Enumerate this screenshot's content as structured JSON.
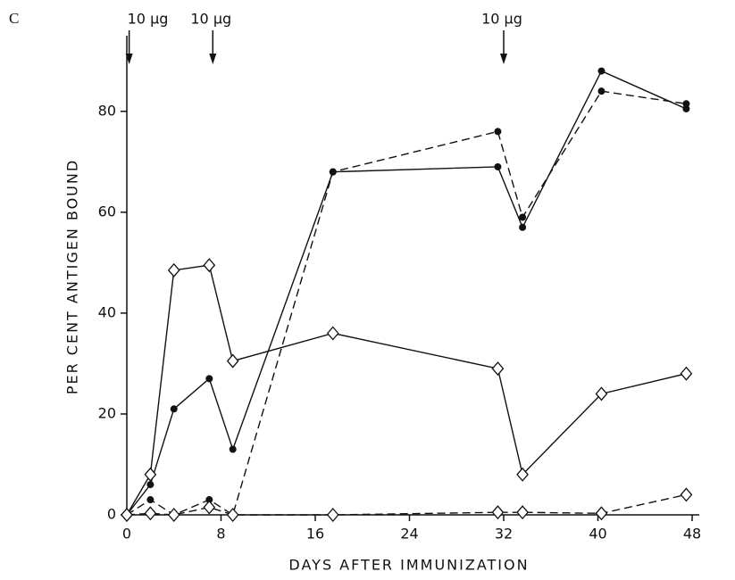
{
  "chart_data": {
    "type": "line",
    "panel_label": "C",
    "x_label": "DAYS AFTER IMMUNIZATION",
    "y_label": "PER CENT ANTIGEN BOUND",
    "xlim": [
      0,
      48
    ],
    "xticks": [
      0,
      8,
      16,
      24,
      32,
      40,
      48
    ],
    "ylim": [
      0,
      95
    ],
    "yticks": [
      0,
      20,
      40,
      60,
      80
    ],
    "annotations": [
      {
        "text": "10 μg",
        "x": 0.2
      },
      {
        "text": "10 μg",
        "x": 7.3
      },
      {
        "text": "10 μg",
        "x": 32
      }
    ],
    "series": [
      {
        "color": "#111111",
        "marker": "circle",
        "dashed": false,
        "x": [
          0,
          2,
          4,
          7,
          9,
          17.5,
          31.5,
          33.6,
          40.3,
          47.5
        ],
        "values": [
          0,
          6,
          21,
          27,
          13,
          68,
          69,
          57,
          88,
          80.5
        ]
      },
      {
        "color": "#111111",
        "marker": "circle",
        "dashed": true,
        "x": [
          0,
          2,
          4,
          7,
          9,
          17.5,
          31.5,
          33.6,
          40.3,
          47.5
        ],
        "values": [
          0,
          3,
          0,
          3,
          0,
          68,
          76,
          59,
          84,
          81.5
        ]
      },
      {
        "color": "#111111",
        "marker": "diamond",
        "dashed": false,
        "x": [
          0,
          2,
          4,
          7,
          9,
          17.5,
          31.5,
          33.6,
          40.3,
          47.5
        ],
        "values": [
          0,
          8,
          48.5,
          49.5,
          30.5,
          36,
          29,
          8,
          24,
          28
        ]
      },
      {
        "color": "#111111",
        "marker": "diamond",
        "dashed": true,
        "x": [
          0,
          2,
          4,
          7,
          9,
          17.5,
          31.5,
          33.6,
          40.3,
          47.5
        ],
        "values": [
          0,
          0.3,
          0,
          1.5,
          0,
          0,
          0.5,
          0.5,
          0.3,
          4
        ]
      }
    ]
  }
}
